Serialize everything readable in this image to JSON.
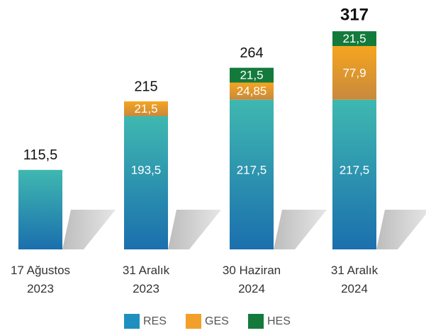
{
  "chart_data": {
    "type": "stacked_bar",
    "categories": [
      "17 Ağustos 2023",
      "31 Aralık 2023",
      "30 Haziran 2024",
      "31 Aralık 2024"
    ],
    "series": [
      {
        "name": "RES",
        "color": "#1f8fbf",
        "values": [
          115.5,
          193.5,
          217.5,
          217.5
        ],
        "value_labels": [
          null,
          "193,5",
          "217,5",
          "217,5"
        ]
      },
      {
        "name": "GES",
        "color": "#f2a02a",
        "values": [
          null,
          21.5,
          24.85,
          77.9
        ],
        "value_labels": [
          null,
          "21,5",
          "24,85",
          "77,9"
        ]
      },
      {
        "name": "HES",
        "color": "#137a3c",
        "values": [
          null,
          null,
          21.5,
          21.5
        ],
        "value_labels": [
          null,
          null,
          "21,5",
          "21,5"
        ]
      }
    ],
    "totals": [
      115.5,
      215,
      264,
      317
    ],
    "total_labels": [
      "115,5",
      "215",
      "264",
      "317"
    ],
    "legend": "bottom"
  }
}
